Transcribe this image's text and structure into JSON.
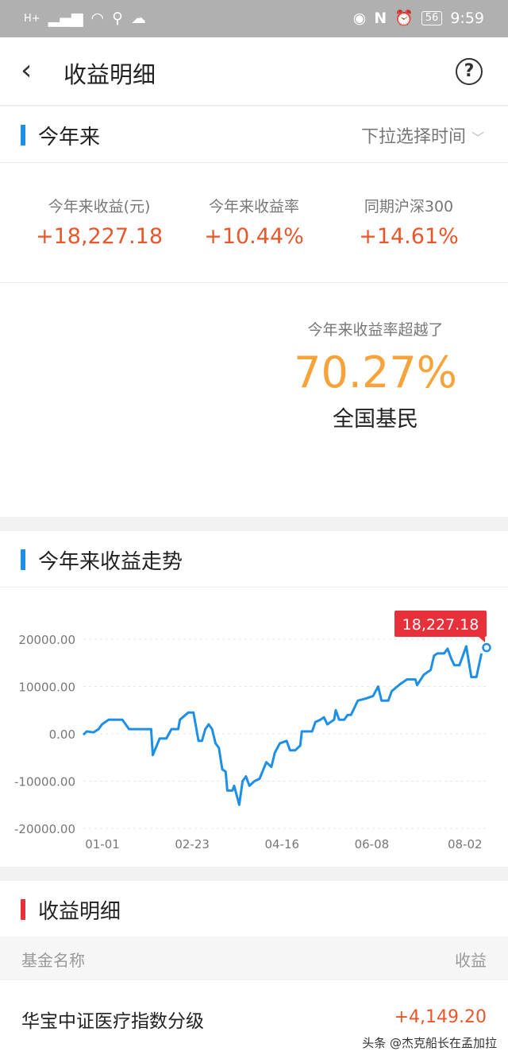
{
  "status_bar": {
    "time": "9:59",
    "battery": "56",
    "network": "H+"
  },
  "header": {
    "title": "收益明细",
    "back_icon": "chevron-left-icon",
    "help_icon": "question-circle-icon"
  },
  "period_section": {
    "title": "今年来",
    "picker_label": "下拉选择时间"
  },
  "stats": [
    {
      "label": "今年来收益(元)",
      "value": "+18,227.18"
    },
    {
      "label": "今年来收益率",
      "value": "+10.44%"
    },
    {
      "label": "同期沪深300",
      "value": "+14.61%"
    }
  ],
  "ranking": {
    "prefix": "今年来收益率超越了",
    "percent": "70.27%",
    "suffix": "全国基民"
  },
  "trend_section": {
    "title": "今年来收益走势"
  },
  "chart_data": {
    "type": "line",
    "title": "",
    "y_ticks": [
      "20000.00",
      "10000.00",
      "0.00",
      "-10000.00",
      "-20000.00"
    ],
    "ylim": [
      -20000,
      20000
    ],
    "x_ticks": [
      "01-01",
      "02-23",
      "04-16",
      "06-08",
      "08-02"
    ],
    "grid": true,
    "line_color": "#1e8fe6",
    "tooltip": "18,227.18",
    "tooltip_color": "#e8303a",
    "points": [
      [
        "01-01",
        -200
      ],
      [
        "01-03",
        500
      ],
      [
        "01-07",
        300
      ],
      [
        "01-10",
        1000
      ],
      [
        "01-12",
        2000
      ],
      [
        "01-16",
        3000
      ],
      [
        "01-24",
        3000
      ],
      [
        "01-28",
        1000
      ],
      [
        "02-10",
        1000
      ],
      [
        "02-11",
        -4500
      ],
      [
        "02-15",
        -1000
      ],
      [
        "02-19",
        -1000
      ],
      [
        "02-22",
        1000
      ],
      [
        "02-26",
        1000
      ],
      [
        "02-27",
        3000
      ],
      [
        "03-03",
        4500
      ],
      [
        "03-06",
        4500
      ],
      [
        "03-09",
        -1500
      ],
      [
        "03-11",
        -1500
      ],
      [
        "03-13",
        1000
      ],
      [
        "03-15",
        2000
      ],
      [
        "03-17",
        1000
      ],
      [
        "03-19",
        -2000
      ],
      [
        "03-21",
        -3000
      ],
      [
        "03-23",
        -7500
      ],
      [
        "03-25",
        -8000
      ],
      [
        "03-26",
        -12000
      ],
      [
        "03-29",
        -12000
      ],
      [
        "03-30",
        -11000
      ],
      [
        "04-02",
        -15000
      ],
      [
        "04-04",
        -10000
      ],
      [
        "04-06",
        -9000
      ],
      [
        "04-08",
        -11000
      ],
      [
        "04-11",
        -10000
      ],
      [
        "04-14",
        -9500
      ],
      [
        "04-18",
        -6000
      ],
      [
        "04-21",
        -7000
      ],
      [
        "04-23",
        -4000
      ],
      [
        "04-26",
        -2000
      ],
      [
        "04-30",
        -1500
      ],
      [
        "05-02",
        -3500
      ],
      [
        "05-05",
        -3500
      ],
      [
        "05-08",
        -2500
      ],
      [
        "05-09",
        500
      ],
      [
        "05-15",
        500
      ],
      [
        "05-17",
        2500
      ],
      [
        "05-20",
        3000
      ],
      [
        "05-22",
        3500
      ],
      [
        "05-24",
        2000
      ],
      [
        "05-28",
        3000
      ],
      [
        "05-29",
        5000
      ],
      [
        "05-31",
        3000
      ],
      [
        "06-03",
        3000
      ],
      [
        "06-05",
        4000
      ],
      [
        "06-07",
        4000
      ],
      [
        "06-11",
        7000
      ],
      [
        "06-16",
        7500
      ],
      [
        "06-20",
        8000
      ],
      [
        "06-23",
        10000
      ],
      [
        "06-25",
        7000
      ],
      [
        "06-29",
        7000
      ],
      [
        "07-01",
        9000
      ],
      [
        "07-06",
        10500
      ],
      [
        "07-10",
        11500
      ],
      [
        "07-15",
        11500
      ],
      [
        "07-16",
        10300
      ],
      [
        "07-20",
        12500
      ],
      [
        "07-24",
        13500
      ],
      [
        "07-26",
        16500
      ],
      [
        "07-28",
        17000
      ],
      [
        "08-01",
        17000
      ],
      [
        "08-03",
        18000
      ],
      [
        "08-05",
        16000
      ],
      [
        "08-07",
        14500
      ],
      [
        "08-10",
        14500
      ],
      [
        "08-14",
        18500
      ],
      [
        "08-17",
        12000
      ],
      [
        "08-20",
        12000
      ],
      [
        "08-23",
        17000
      ],
      [
        "08-26",
        18227.18
      ]
    ]
  },
  "detail_section": {
    "title": "收益明细",
    "col_name": "基金名称",
    "col_profit": "收益",
    "rows": [
      {
        "name": "华宝中证医疗指数分级",
        "profit": "+4,149.20"
      }
    ]
  },
  "watermark": "头条 @杰克船长在孟加拉",
  "colors": {
    "accent_blue": "#1e8fe6",
    "profit_orange": "#e8572a",
    "highlight_orange": "#f7a33a",
    "section_red": "#e8303a"
  }
}
